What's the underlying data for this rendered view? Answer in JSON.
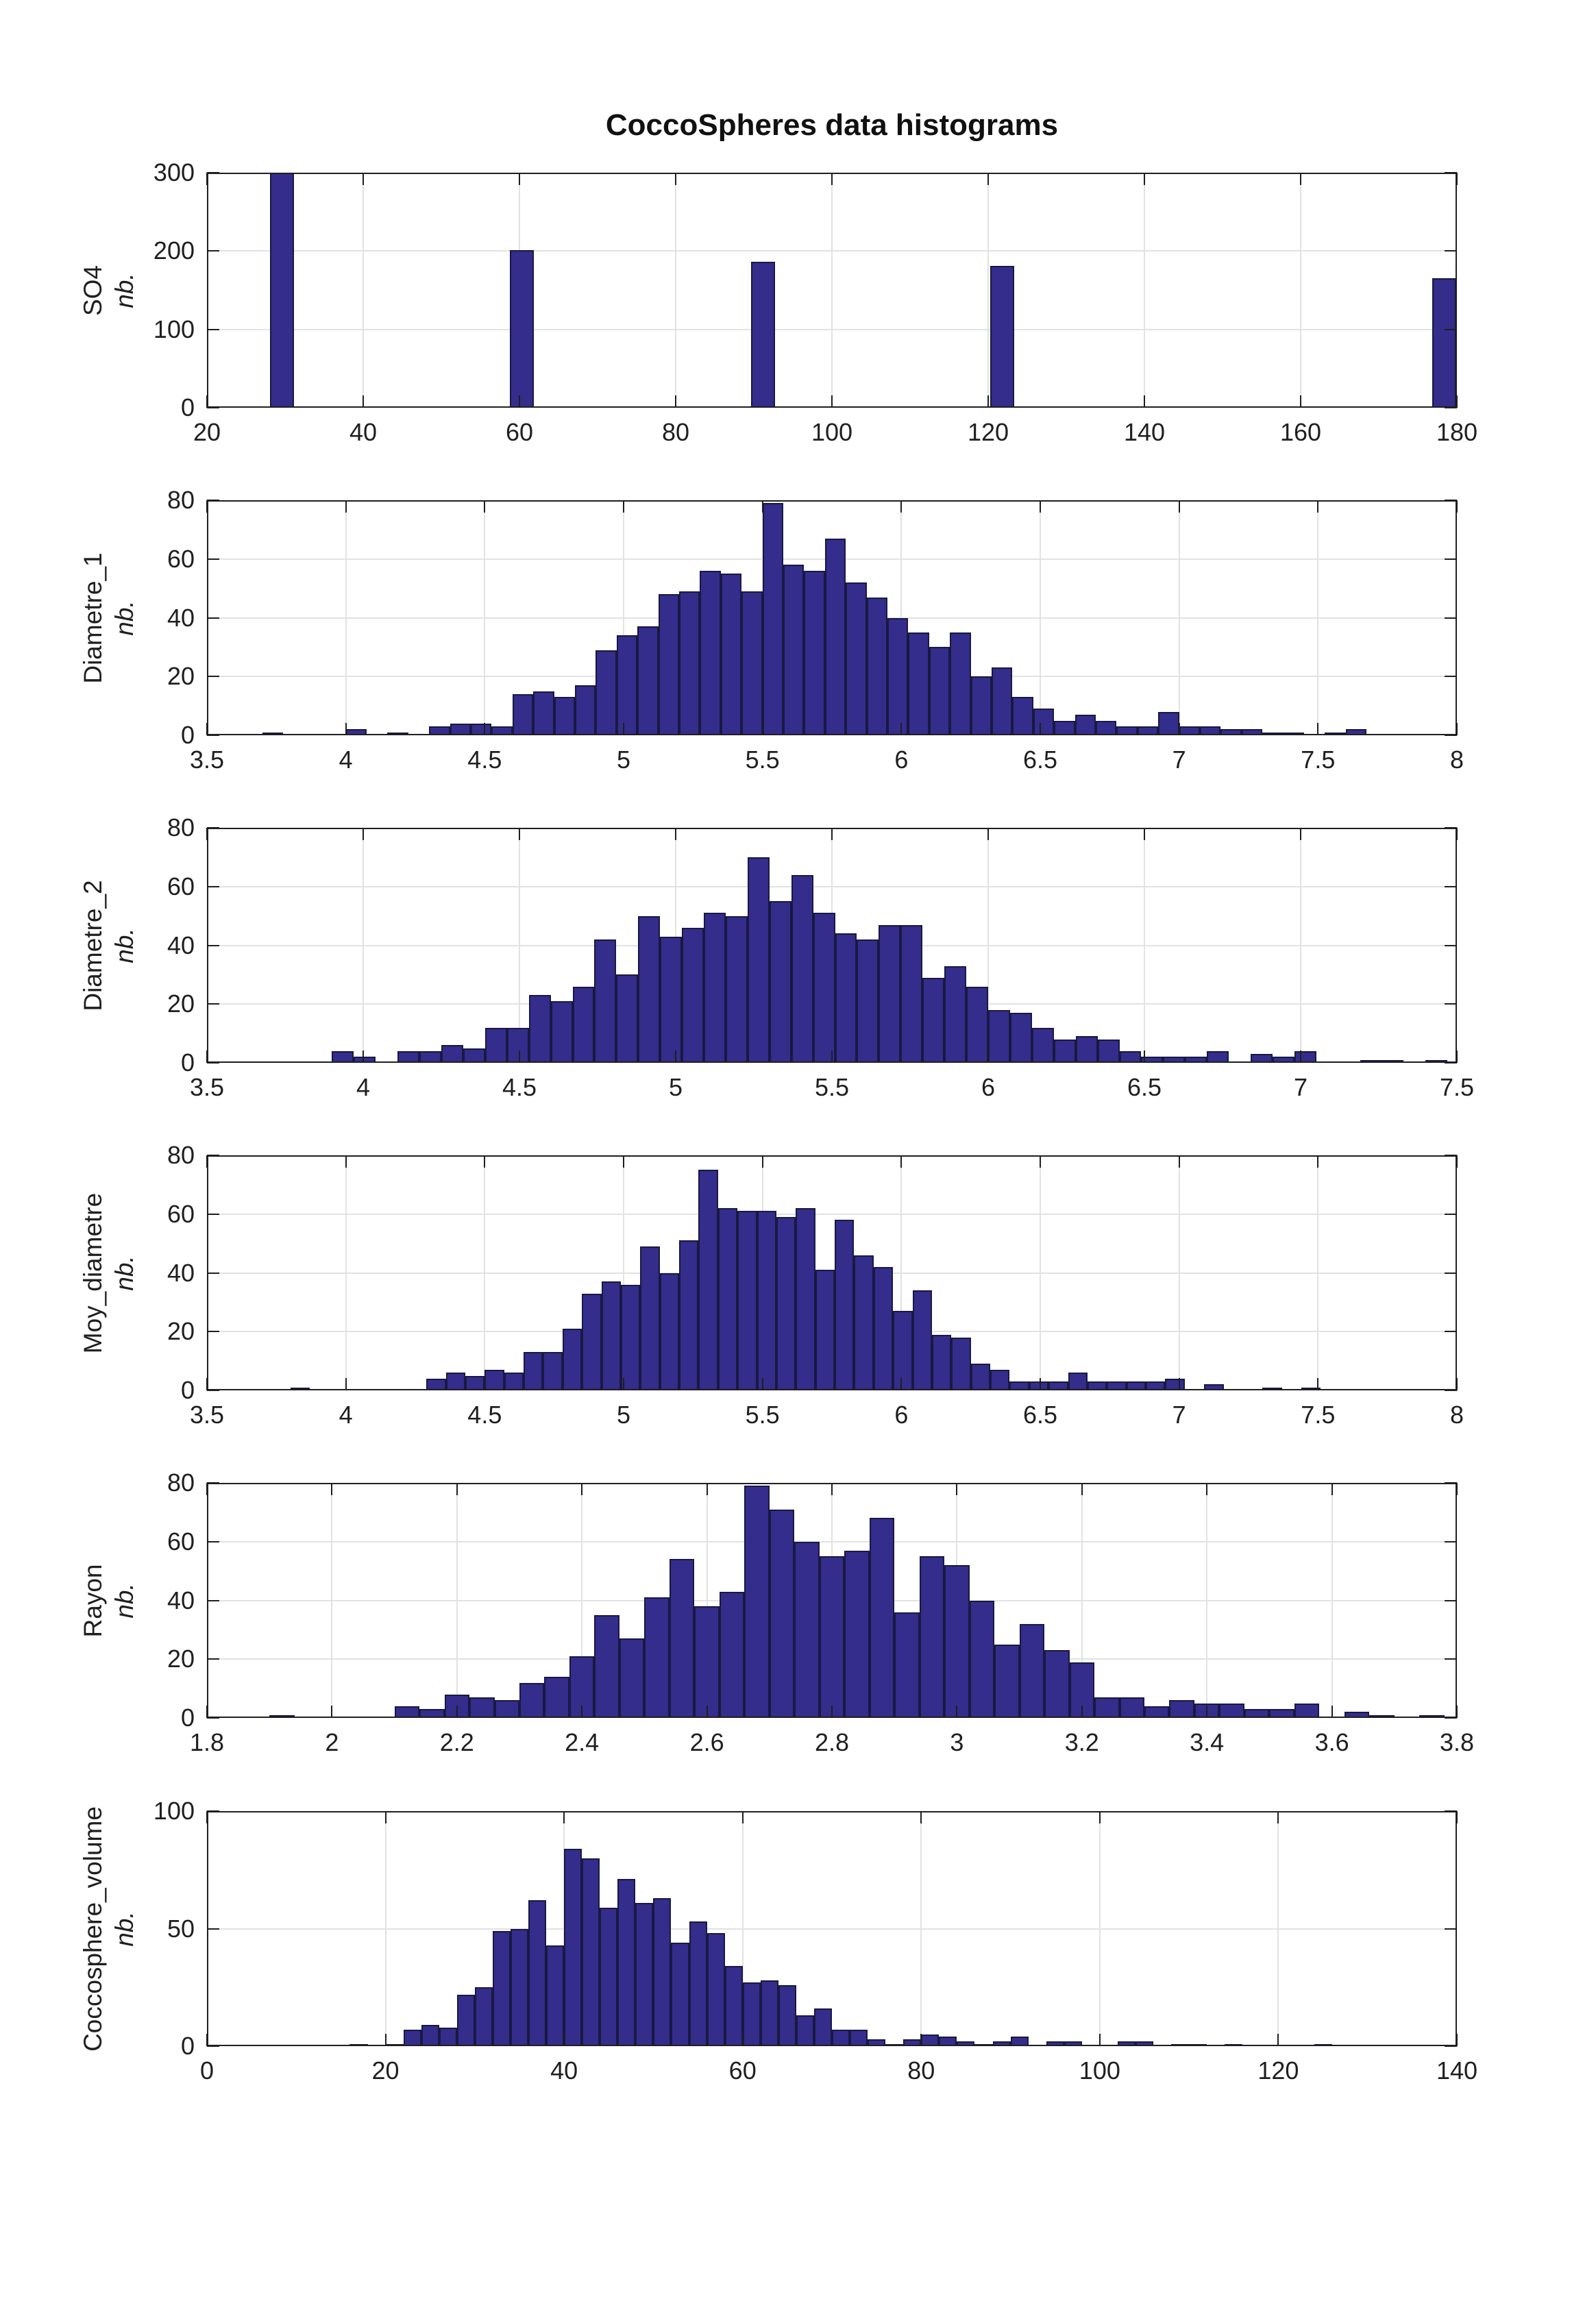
{
  "figure": {
    "title": "CoccoSpheres data histograms",
    "background": "#FFFFFF",
    "bar_fill": "#342D8C",
    "bar_edge": "#191942",
    "grid_color": "#E2E2E2",
    "axis_color": "#1F1F1F",
    "ylabel_sub": "nb."
  },
  "chart_data": [
    {
      "type": "bar",
      "name": "SO4",
      "ylabel": "SO4",
      "ylabel_sub": "nb.",
      "xlim": [
        20,
        180
      ],
      "ylim": [
        0,
        300
      ],
      "xtick_vals": [
        20,
        40,
        60,
        80,
        100,
        120,
        140,
        160,
        180
      ],
      "xtick_labels": [
        "20",
        "40",
        "60",
        "80",
        "100",
        "120",
        "140",
        "160",
        "180"
      ],
      "ytick_vals": [
        0,
        100,
        200,
        300
      ],
      "ytick_labels": [
        "0",
        "100",
        "200",
        "300"
      ],
      "bar_centers": [
        29.6,
        60.3,
        91.2,
        121.8,
        178.4
      ],
      "bar_width": 3.1,
      "values": [
        300,
        201,
        186,
        181,
        165
      ],
      "grid": true,
      "legend": "none"
    },
    {
      "type": "histogram",
      "name": "Diametre_1",
      "ylabel": "Diametre_1",
      "ylabel_sub": "nb.",
      "xlim": [
        3.5,
        8
      ],
      "ylim": [
        0,
        80
      ],
      "xtick_vals": [
        3.5,
        4,
        4.5,
        5,
        5.5,
        6,
        6.5,
        7,
        7.5,
        8
      ],
      "xtick_labels": [
        "3.5",
        "4",
        "4.5",
        "5",
        "5.5",
        "6",
        "6.5",
        "7",
        "7.5",
        "8"
      ],
      "ytick_vals": [
        0,
        20,
        40,
        60,
        80
      ],
      "ytick_labels": [
        "0",
        "20",
        "40",
        "60",
        "80"
      ],
      "bins_start": 3.7,
      "bin_width": 0.075,
      "counts": [
        1,
        0,
        0,
        0,
        2,
        0,
        1,
        0,
        3,
        4,
        4,
        3,
        14,
        15,
        13,
        17,
        29,
        34,
        37,
        48,
        49,
        56,
        55,
        49,
        79,
        58,
        56,
        67,
        52,
        47,
        40,
        35,
        30,
        35,
        20,
        23,
        13,
        9,
        5,
        7,
        5,
        3,
        3,
        8,
        3,
        3,
        2,
        2,
        1,
        1,
        0,
        1,
        2
      ],
      "grid": true,
      "legend": "none"
    },
    {
      "type": "histogram",
      "name": "Diametre_2",
      "ylabel": "Diametre_2",
      "ylabel_sub": "nb.",
      "xlim": [
        3.5,
        7.5
      ],
      "ylim": [
        0,
        80
      ],
      "xtick_vals": [
        3.5,
        4,
        4.5,
        5,
        5.5,
        6,
        6.5,
        7,
        7.5
      ],
      "xtick_labels": [
        "3.5",
        "4",
        "4.5",
        "5",
        "5.5",
        "6",
        "6.5",
        "7",
        "7.5"
      ],
      "ytick_vals": [
        0,
        20,
        40,
        60,
        80
      ],
      "ytick_labels": [
        "0",
        "20",
        "40",
        "60",
        "80"
      ],
      "bins_start": 3.9,
      "bin_width": 0.07,
      "counts": [
        4,
        2,
        0,
        4,
        4,
        6,
        5,
        12,
        12,
        23,
        21,
        26,
        42,
        30,
        50,
        43,
        46,
        51,
        50,
        70,
        55,
        64,
        51,
        44,
        42,
        47,
        47,
        29,
        33,
        26,
        18,
        17,
        12,
        8,
        9,
        8,
        4,
        2,
        2,
        2,
        4,
        0,
        3,
        2,
        4,
        0,
        0,
        1,
        1,
        0,
        1
      ],
      "grid": true,
      "legend": "none"
    },
    {
      "type": "histogram",
      "name": "Moy_diametre",
      "ylabel": "Moy_diametre",
      "ylabel_sub": "nb.",
      "xlim": [
        3.5,
        8
      ],
      "ylim": [
        0,
        80
      ],
      "xtick_vals": [
        3.5,
        4,
        4.5,
        5,
        5.5,
        6,
        6.5,
        7,
        7.5,
        8
      ],
      "xtick_labels": [
        "3.5",
        "4",
        "4.5",
        "5",
        "5.5",
        "6",
        "6.5",
        "7",
        "7.5",
        "8"
      ],
      "ytick_vals": [
        0,
        20,
        40,
        60,
        80
      ],
      "ytick_labels": [
        "0",
        "20",
        "40",
        "60",
        "80"
      ],
      "bins_start": 3.8,
      "bin_width": 0.07,
      "counts": [
        1,
        0,
        0,
        0,
        0,
        0,
        0,
        4,
        6,
        5,
        7,
        6,
        13,
        13,
        21,
        33,
        37,
        36,
        49,
        40,
        51,
        75,
        62,
        61,
        61,
        59,
        62,
        41,
        58,
        46,
        42,
        27,
        34,
        19,
        18,
        9,
        7,
        3,
        3,
        3,
        6,
        3,
        3,
        3,
        3,
        4,
        0,
        2,
        0,
        0,
        1,
        0,
        1
      ],
      "grid": true,
      "legend": "none"
    },
    {
      "type": "histogram",
      "name": "Rayon",
      "ylabel": "Rayon",
      "ylabel_sub": "nb.",
      "xlim": [
        1.8,
        3.8
      ],
      "ylim": [
        0,
        80
      ],
      "xtick_vals": [
        1.8,
        2,
        2.2,
        2.4,
        2.6,
        2.8,
        3,
        3.2,
        3.4,
        3.6,
        3.8
      ],
      "xtick_labels": [
        "1.8",
        "2",
        "2.2",
        "2.4",
        "2.6",
        "2.8",
        "3",
        "3.2",
        "3.4",
        "3.6",
        "3.8"
      ],
      "ytick_vals": [
        0,
        20,
        40,
        60,
        80
      ],
      "ytick_labels": [
        "0",
        "20",
        "40",
        "60",
        "80"
      ],
      "bins_start": 1.9,
      "bin_width": 0.04,
      "counts": [
        1,
        0,
        0,
        0,
        0,
        4,
        3,
        8,
        7,
        6,
        12,
        14,
        21,
        35,
        27,
        41,
        54,
        38,
        43,
        79,
        71,
        60,
        55,
        57,
        68,
        36,
        55,
        52,
        40,
        25,
        32,
        23,
        19,
        7,
        7,
        4,
        6,
        5,
        5,
        3,
        3,
        5,
        0,
        2,
        1,
        0,
        1,
        0
      ],
      "grid": true,
      "legend": "none"
    },
    {
      "type": "histogram",
      "name": "Coccosphere_volume",
      "ylabel": "Coccosphere_volume",
      "ylabel_sub": "nb.",
      "xlim": [
        0,
        140
      ],
      "ylim": [
        0,
        100
      ],
      "xtick_vals": [
        0,
        20,
        40,
        60,
        80,
        100,
        120,
        140
      ],
      "xtick_labels": [
        "0",
        "20",
        "40",
        "60",
        "80",
        "100",
        "120",
        "140"
      ],
      "ytick_vals": [
        0,
        50,
        100
      ],
      "ytick_labels": [
        "0",
        "50",
        "100"
      ],
      "bins_start": 16,
      "bin_width": 2,
      "counts": [
        1,
        0,
        1,
        7,
        9,
        8,
        22,
        25,
        49,
        50,
        62,
        43,
        84,
        80,
        59,
        71,
        61,
        63,
        44,
        53,
        48,
        34,
        27,
        28,
        26,
        13,
        16,
        7,
        7,
        3,
        1,
        3,
        5,
        4,
        2,
        1,
        2,
        4,
        0,
        2,
        2,
        0,
        0,
        2,
        2,
        0,
        1,
        1,
        0,
        1,
        0,
        0,
        0,
        0,
        1
      ],
      "grid": true,
      "legend": "none"
    }
  ]
}
